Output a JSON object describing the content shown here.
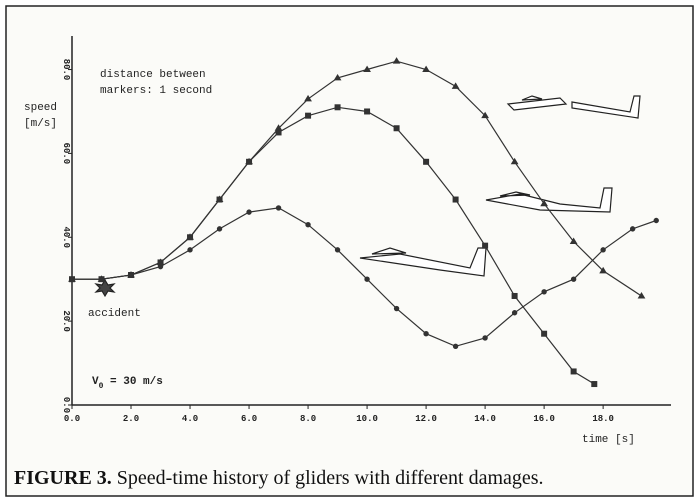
{
  "chart_data": {
    "type": "line",
    "annotations": {
      "speed_line1": "speed",
      "speed_line2": "[m/s]",
      "distance_line1": "distance between",
      "distance_line2": "markers:  1 second",
      "accident": "accident",
      "v0_main": "V",
      "v0_sub": "0",
      "v0_rest": " = 30 m/s"
    },
    "xlabel": "time [s]",
    "caption_bold": "FIGURE 3.",
    "caption": "Speed-time history of gliders with different damages.",
    "xlim": [
      0,
      20.3
    ],
    "ylim": [
      0,
      88
    ],
    "xticks": [
      {
        "value": 0,
        "label": "0.0"
      },
      {
        "value": 2,
        "label": "2.0"
      },
      {
        "value": 4,
        "label": "4.0"
      },
      {
        "value": 6,
        "label": "6.0"
      },
      {
        "value": 8,
        "label": "8.0"
      },
      {
        "value": 10,
        "label": "10.0"
      },
      {
        "value": 12,
        "label": "12.0"
      },
      {
        "value": 14,
        "label": "14.0"
      },
      {
        "value": 16,
        "label": "16.0"
      },
      {
        "value": 18,
        "label": "18.0"
      }
    ],
    "yticks": [
      {
        "value": 0,
        "label": "0.0"
      },
      {
        "value": 20,
        "label": "20.0"
      },
      {
        "value": 40,
        "label": "40.0"
      },
      {
        "value": 60,
        "label": "60.0"
      },
      {
        "value": 80,
        "label": "80.0"
      }
    ],
    "series": [
      {
        "marker": "triangle",
        "color": "#333333",
        "x": [
          0,
          1,
          2,
          3,
          4,
          5,
          6,
          7,
          8,
          9,
          10,
          11,
          12,
          13,
          14,
          15,
          16,
          17,
          18,
          19.3
        ],
        "values": [
          30,
          30,
          31,
          34,
          40,
          49,
          58,
          66,
          73,
          78,
          80,
          82,
          80,
          76,
          69,
          58,
          48,
          39,
          32,
          26
        ]
      },
      {
        "marker": "square",
        "color": "#333333",
        "x": [
          0,
          1,
          2,
          3,
          4,
          5,
          6,
          7,
          8,
          9,
          10,
          11,
          12,
          13,
          14,
          15,
          16,
          17,
          17.7
        ],
        "values": [
          30,
          30,
          31,
          34,
          40,
          49,
          58,
          65,
          69,
          71,
          70,
          66,
          58,
          49,
          38,
          26,
          17,
          8,
          5
        ]
      },
      {
        "marker": "circle",
        "color": "#333333",
        "x": [
          0,
          1,
          2,
          3,
          4,
          5,
          6,
          7,
          8,
          9,
          10,
          11,
          12,
          13,
          14,
          15,
          16,
          17,
          18,
          19,
          19.8
        ],
        "values": [
          30,
          30,
          31,
          33,
          37,
          42,
          46,
          47,
          43,
          37,
          30,
          23,
          17,
          14,
          16,
          22,
          27,
          30,
          37,
          42,
          44
        ]
      }
    ]
  }
}
